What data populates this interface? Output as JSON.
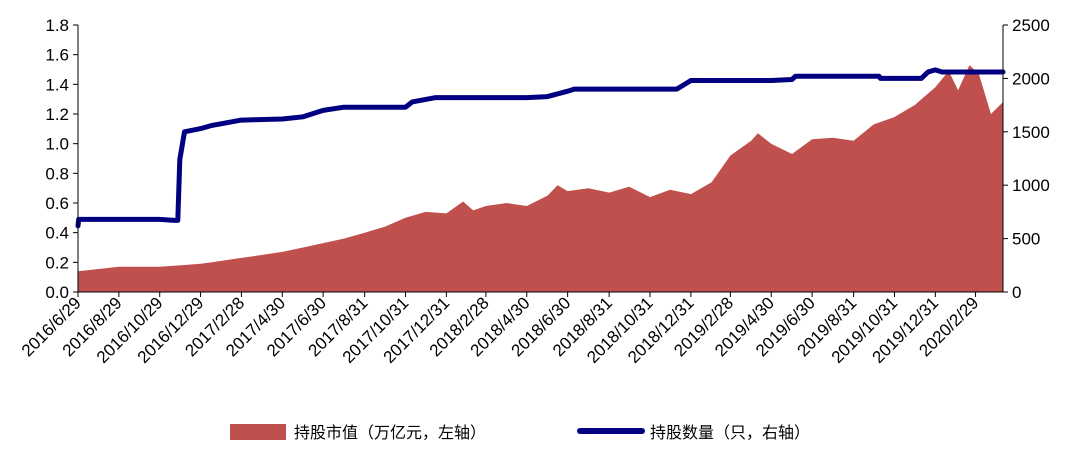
{
  "chart_data": {
    "type": "area+line",
    "left_axis": {
      "ylim": [
        0,
        1.8
      ],
      "ticks": [
        "0.0",
        "0.2",
        "0.4",
        "0.6",
        "0.8",
        "1.0",
        "1.2",
        "1.4",
        "1.6",
        "1.8"
      ]
    },
    "right_axis": {
      "ylim": [
        0,
        2500
      ],
      "ticks": [
        "0",
        "500",
        "1000",
        "1500",
        "2000",
        "2500"
      ]
    },
    "x_tick_labels": [
      "2016/6/29",
      "2016/8/29",
      "2016/10/29",
      "2016/12/29",
      "2017/2/28",
      "2017/4/30",
      "2017/6/30",
      "2017/8/31",
      "2017/10/31",
      "2017/12/31",
      "2018/2/28",
      "2018/4/30",
      "2018/6/30",
      "2018/8/31",
      "2018/10/31",
      "2018/12/31",
      "2019/2/28",
      "2019/4/30",
      "2019/6/30",
      "2019/8/31",
      "2019/10/31",
      "2019/12/31",
      "2020/2/29"
    ],
    "x_start_date": "2016-06-29",
    "x_end_date": "2020-04-10",
    "series": [
      {
        "name": "持股市值（万亿元，左轴）",
        "type": "area",
        "axis": "left",
        "color": "#c0504d",
        "points": [
          [
            "2016-06-29",
            0.14
          ],
          [
            "2016-08-29",
            0.17
          ],
          [
            "2016-10-29",
            0.17
          ],
          [
            "2016-11-30",
            0.18
          ],
          [
            "2016-12-29",
            0.19
          ],
          [
            "2017-01-15",
            0.2
          ],
          [
            "2017-02-28",
            0.23
          ],
          [
            "2017-03-31",
            0.25
          ],
          [
            "2017-04-30",
            0.27
          ],
          [
            "2017-05-31",
            0.3
          ],
          [
            "2017-06-30",
            0.33
          ],
          [
            "2017-07-31",
            0.36
          ],
          [
            "2017-08-31",
            0.4
          ],
          [
            "2017-09-30",
            0.44
          ],
          [
            "2017-10-31",
            0.5
          ],
          [
            "2017-11-30",
            0.54
          ],
          [
            "2017-12-31",
            0.53
          ],
          [
            "2018-01-25",
            0.61
          ],
          [
            "2018-02-09",
            0.55
          ],
          [
            "2018-02-28",
            0.58
          ],
          [
            "2018-03-31",
            0.6
          ],
          [
            "2018-04-30",
            0.58
          ],
          [
            "2018-05-31",
            0.65
          ],
          [
            "2018-06-15",
            0.72
          ],
          [
            "2018-06-30",
            0.68
          ],
          [
            "2018-07-31",
            0.7
          ],
          [
            "2018-08-31",
            0.67
          ],
          [
            "2018-09-30",
            0.71
          ],
          [
            "2018-10-31",
            0.64
          ],
          [
            "2018-11-30",
            0.69
          ],
          [
            "2018-12-31",
            0.66
          ],
          [
            "2019-01-31",
            0.74
          ],
          [
            "2019-02-28",
            0.92
          ],
          [
            "2019-03-31",
            1.02
          ],
          [
            "2019-04-10",
            1.07
          ],
          [
            "2019-04-30",
            1.0
          ],
          [
            "2019-05-31",
            0.93
          ],
          [
            "2019-06-30",
            1.03
          ],
          [
            "2019-07-31",
            1.04
          ],
          [
            "2019-08-31",
            1.02
          ],
          [
            "2019-09-30",
            1.13
          ],
          [
            "2019-10-31",
            1.18
          ],
          [
            "2019-11-30",
            1.26
          ],
          [
            "2019-12-31",
            1.38
          ],
          [
            "2020-01-20",
            1.49
          ],
          [
            "2020-02-03",
            1.36
          ],
          [
            "2020-02-20",
            1.53
          ],
          [
            "2020-03-05",
            1.47
          ],
          [
            "2020-03-23",
            1.2
          ],
          [
            "2020-04-10",
            1.28
          ]
        ]
      },
      {
        "name": "持股数量（只，右轴）",
        "type": "line",
        "axis": "right",
        "color": "#000080",
        "points": [
          [
            "2016-06-29",
            620
          ],
          [
            "2016-06-30",
            680
          ],
          [
            "2016-08-29",
            680
          ],
          [
            "2016-10-29",
            680
          ],
          [
            "2016-11-20",
            670
          ],
          [
            "2016-11-25",
            670
          ],
          [
            "2016-11-28",
            1240
          ],
          [
            "2016-12-05",
            1500
          ],
          [
            "2016-12-29",
            1530
          ],
          [
            "2017-01-15",
            1560
          ],
          [
            "2017-02-28",
            1610
          ],
          [
            "2017-04-30",
            1620
          ],
          [
            "2017-05-31",
            1640
          ],
          [
            "2017-06-30",
            1700
          ],
          [
            "2017-07-31",
            1730
          ],
          [
            "2017-08-31",
            1730
          ],
          [
            "2017-10-31",
            1730
          ],
          [
            "2017-11-10",
            1780
          ],
          [
            "2017-12-15",
            1820
          ],
          [
            "2017-12-31",
            1820
          ],
          [
            "2018-02-28",
            1820
          ],
          [
            "2018-04-30",
            1820
          ],
          [
            "2018-05-31",
            1830
          ],
          [
            "2018-06-30",
            1880
          ],
          [
            "2018-07-10",
            1900
          ],
          [
            "2018-08-31",
            1900
          ],
          [
            "2018-10-31",
            1900
          ],
          [
            "2018-12-10",
            1900
          ],
          [
            "2018-12-31",
            1980
          ],
          [
            "2019-02-28",
            1980
          ],
          [
            "2019-04-30",
            1980
          ],
          [
            "2019-05-31",
            1990
          ],
          [
            "2019-06-05",
            2020
          ],
          [
            "2019-06-30",
            2020
          ],
          [
            "2019-08-31",
            2020
          ],
          [
            "2019-10-08",
            2020
          ],
          [
            "2019-10-10",
            2000
          ],
          [
            "2019-12-10",
            2000
          ],
          [
            "2019-12-20",
            2060
          ],
          [
            "2019-12-31",
            2080
          ],
          [
            "2020-01-10",
            2060
          ],
          [
            "2020-02-29",
            2060
          ],
          [
            "2020-04-10",
            2060
          ]
        ]
      }
    ],
    "grid": false,
    "legend_position": "bottom"
  }
}
